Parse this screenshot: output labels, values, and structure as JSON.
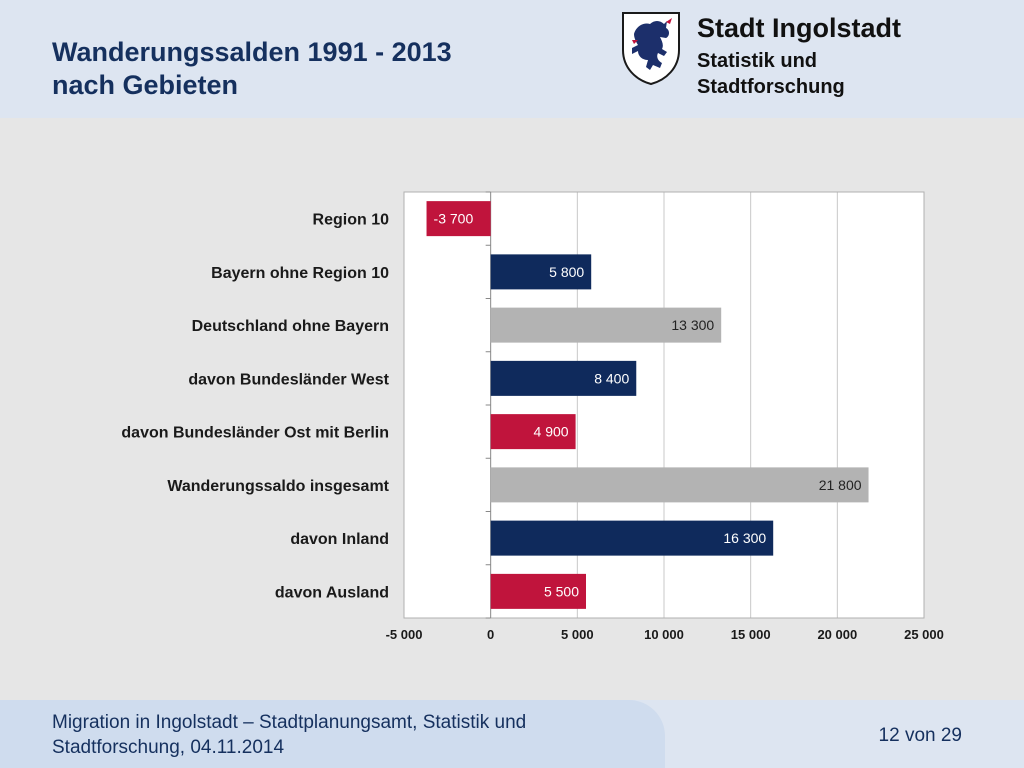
{
  "header": {
    "title_line1": "Wanderungssalden 1991 - 2013",
    "title_line2": "nach Gebieten",
    "org_name": "Stadt Ingolstadt",
    "org_sub_line1": "Statistik und",
    "org_sub_line2": "Stadtforschung",
    "crest_icon": "panther-crest-icon"
  },
  "footer": {
    "line1": "Migration in Ingolstadt – Stadtplanungsamt, Statistik und",
    "line2": "Stadtforschung, 04.11.2014",
    "page": "12 von 29"
  },
  "chart_data": {
    "type": "bar",
    "orientation": "horizontal",
    "categories": [
      "Region 10",
      "Bayern ohne Region 10",
      "Deutschland ohne Bayern",
      "davon Bundesländer West",
      "davon Bundesländer Ost mit Berlin",
      "Wanderungssaldo insgesamt",
      "davon Inland ",
      "davon Ausland"
    ],
    "values": [
      -3700,
      5800,
      13300,
      8400,
      4900,
      21800,
      16300,
      5500
    ],
    "data_labels": [
      "-3 700",
      "5 800",
      "13 300",
      "8 400",
      "4 900",
      "21 800",
      "16 300",
      "5 500"
    ],
    "bar_colors": [
      "#c0143c",
      "#0f2a5c",
      "#b3b3b3",
      "#0f2a5c",
      "#c0143c",
      "#b3b3b3",
      "#0f2a5c",
      "#c0143c"
    ],
    "xlim": [
      -5000,
      25000
    ],
    "xticks": [
      -5000,
      0,
      5000,
      10000,
      15000,
      20000,
      25000
    ],
    "xtick_labels": [
      "-5 000",
      "0",
      "5 000",
      "10 000",
      "15 000",
      "20 000",
      "25 000"
    ],
    "grid": "vertical",
    "colors": {
      "red": "#c0143c",
      "navy": "#0f2a5c",
      "gray": "#b3b3b3"
    }
  }
}
